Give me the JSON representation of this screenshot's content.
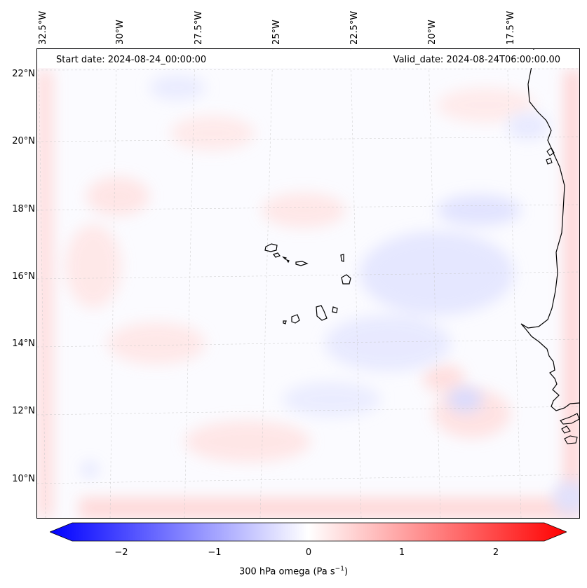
{
  "header": {
    "start_date": "Start date: 2024-08-24_00:00:00",
    "valid_date": "Valid_date: 2024-08-24T06:00:00.00"
  },
  "map": {
    "lon_labels": [
      "32.5°W",
      "30°W",
      "27.5°W",
      "25°W",
      "22.5°W",
      "20°W",
      "17.5°W"
    ],
    "lat_labels": [
      "22°N",
      "20°N",
      "18°N",
      "16°N",
      "14°N",
      "12°N",
      "10°N"
    ],
    "field": "300 hPa omega",
    "gridlines": true,
    "coastline_color": "#000000",
    "features": [
      "Cape Verde islands",
      "West African coastline"
    ]
  },
  "colorbar": {
    "label_main": "300 hPa omega (Pa s",
    "label_sup": "−1",
    "label_close": ")",
    "ticks": [
      "−2",
      "−1",
      "0",
      "1",
      "2"
    ],
    "tick_values": [
      -2,
      -1,
      0,
      1,
      2
    ],
    "range": [
      -2.5,
      2.5
    ],
    "extend": "both",
    "colors": {
      "min": "#0000ff",
      "mid": "#ffffff",
      "max": "#ff0000"
    }
  }
}
